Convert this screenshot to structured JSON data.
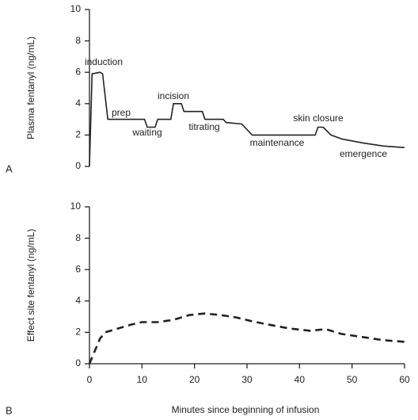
{
  "chart_data": [
    {
      "type": "line",
      "panel": "A",
      "ylabel": "Plasma fentanyl (ng/mL)",
      "x": [
        0,
        0.5,
        2,
        2.5,
        3.5,
        10.5,
        11,
        12.5,
        13,
        15.5,
        16,
        17.5,
        18,
        21.5,
        22,
        25.5,
        26,
        29,
        31,
        43,
        43.5,
        44.5,
        46,
        48,
        52,
        56,
        60
      ],
      "values": [
        0,
        5.9,
        6,
        5.9,
        3,
        3,
        2.5,
        2.5,
        3,
        3,
        4,
        4,
        3.5,
        3.5,
        3,
        3,
        2.8,
        2.7,
        2,
        2,
        2.5,
        2.5,
        2,
        1.75,
        1.5,
        1.3,
        1.2
      ],
      "color": "#222222",
      "dashed": false,
      "xlim": [
        0,
        60
      ],
      "ylim": [
        0,
        10
      ],
      "yticks": [
        0,
        2,
        4,
        6,
        8,
        10
      ],
      "annotations": [
        "induction",
        "prep",
        "waiting",
        "incision",
        "titrating",
        "maintenance",
        "skin closure",
        "emergence"
      ]
    },
    {
      "type": "line",
      "panel": "B",
      "ylabel": "Effect site fentanyl (ng/mL)",
      "xlabel": "Minutes since beginning of infusion",
      "x": [
        0,
        1,
        2,
        3,
        5,
        8,
        10,
        13,
        16,
        19,
        22,
        25,
        28,
        31,
        34,
        38,
        42,
        45,
        48,
        52,
        56,
        60
      ],
      "values": [
        0,
        0.8,
        1.6,
        2.0,
        2.2,
        2.5,
        2.65,
        2.65,
        2.8,
        3.1,
        3.2,
        3.1,
        2.95,
        2.7,
        2.5,
        2.25,
        2.1,
        2.2,
        1.9,
        1.7,
        1.5,
        1.4
      ],
      "color": "#222222",
      "dashed": true,
      "xlim": [
        0,
        60
      ],
      "xticks": [
        0,
        10,
        20,
        30,
        40,
        50,
        60
      ],
      "ylim": [
        0,
        10
      ],
      "yticks": [
        0,
        2,
        4,
        6,
        8,
        10
      ]
    }
  ]
}
